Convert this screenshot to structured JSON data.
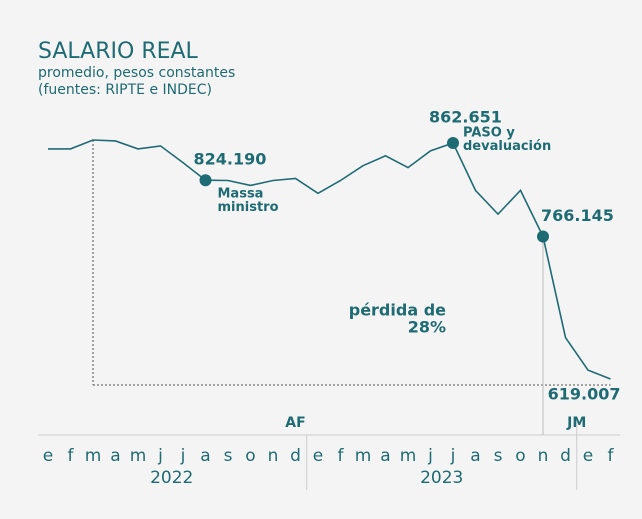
{
  "chart_data": {
    "type": "line",
    "title": "SALARIO REAL",
    "subtitle": [
      "promedio, pesos constantes",
      "(fuentes: RIPTE e INDEC)"
    ],
    "categories": [
      "e",
      "f",
      "m",
      "a",
      "m",
      "j",
      "j",
      "a",
      "s",
      "o",
      "n",
      "d",
      "e",
      "f",
      "m",
      "a",
      "m",
      "j",
      "j",
      "a",
      "s",
      "o",
      "n",
      "d",
      "e",
      "f"
    ],
    "years": [
      "2022",
      "2023"
    ],
    "periods": [
      "AF",
      "JM"
    ],
    "series": [
      {
        "color": "#1f6b73",
        "values": [
          856500,
          856500,
          865700,
          864700,
          856500,
          859600,
          842300,
          824190,
          823900,
          818800,
          823900,
          826000,
          810700,
          823900,
          839200,
          849400,
          837200,
          854500,
          862651,
          813700,
          789200,
          813700,
          766145,
          661800,
          628200,
          619007
        ],
        "value_labels": [
          null,
          null,
          null,
          null,
          null,
          null,
          null,
          "824.190",
          null,
          null,
          null,
          null,
          null,
          null,
          null,
          null,
          null,
          null,
          "862.651",
          null,
          null,
          null,
          "766.145",
          null,
          null,
          "619.007"
        ]
      }
    ],
    "annotations": {
      "massa": [
        "Massa",
        "ministro"
      ],
      "paso": [
        "PASO y",
        "devaluación"
      ],
      "loss": [
        "pérdida de",
        "28%"
      ]
    }
  }
}
